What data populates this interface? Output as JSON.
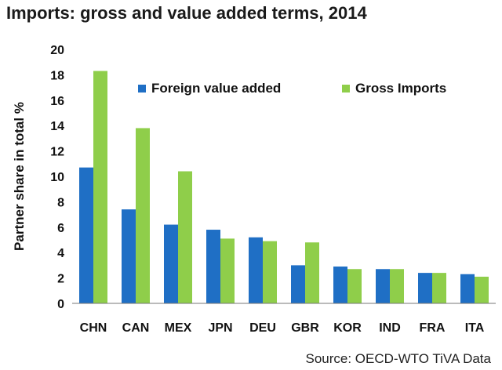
{
  "chart_data": {
    "type": "bar",
    "title": "Imports: gross and value added terms, 2014",
    "ylabel": "Partner share in total %",
    "xlabel": "",
    "ylim": [
      0,
      20
    ],
    "yticks": [
      0,
      2,
      4,
      6,
      8,
      10,
      12,
      14,
      16,
      18,
      20
    ],
    "categories": [
      "CHN",
      "CAN",
      "MEX",
      "JPN",
      "DEU",
      "GBR",
      "KOR",
      "IND",
      "FRA",
      "ITA"
    ],
    "series": [
      {
        "name": "Foreign value added",
        "color": "#1f6fc5",
        "values": [
          10.7,
          7.4,
          6.2,
          5.8,
          5.2,
          3.0,
          2.9,
          2.7,
          2.4,
          2.3
        ]
      },
      {
        "name": "Gross Imports",
        "color": "#8fce4a",
        "values": [
          18.3,
          13.8,
          10.4,
          5.1,
          4.9,
          4.8,
          2.7,
          2.7,
          2.4,
          2.1
        ]
      }
    ],
    "legend": "top-right",
    "source": "Source: OECD-WTO TiVA Data"
  }
}
